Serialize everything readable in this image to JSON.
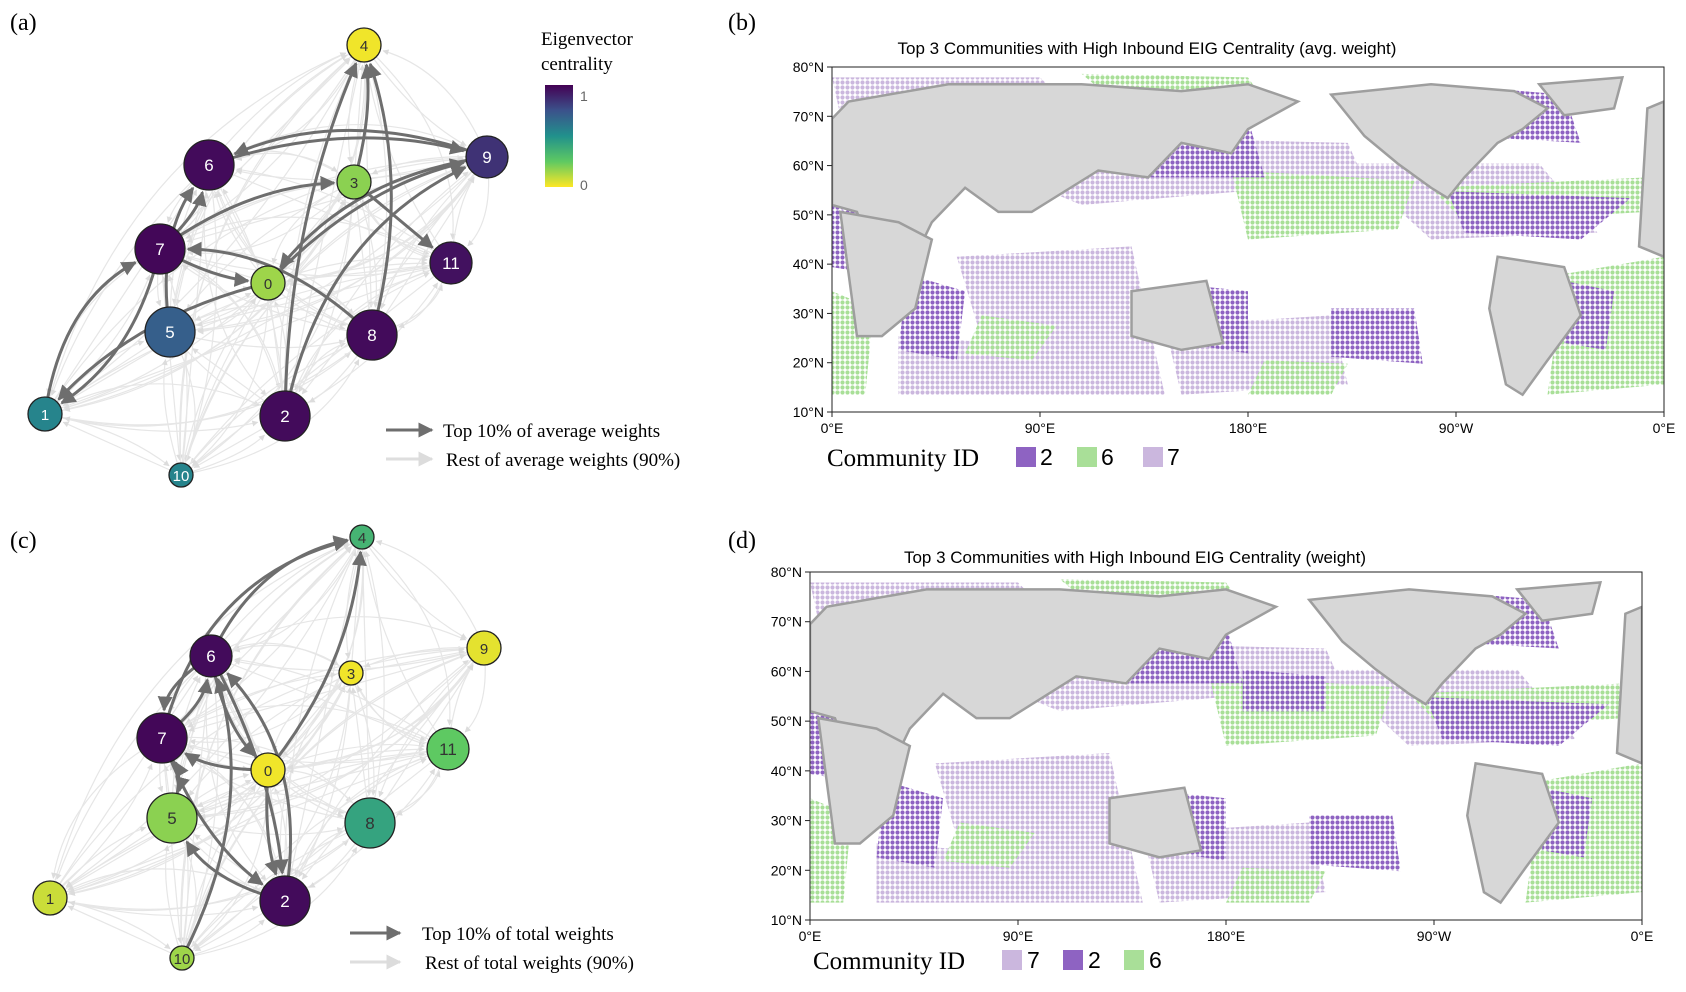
{
  "panels": {
    "a": {
      "label": "(a)",
      "colorbar": {
        "title_line1": "Eigenvector",
        "title_line2": "centrality",
        "max_label": "1",
        "min_label": "0"
      },
      "legend": {
        "top": "Top 10% of average weights",
        "rest": "Rest  of average weights (90%)"
      },
      "nodes": [
        {
          "id": "0",
          "label": "0",
          "centrality": 0.15,
          "size": "small"
        },
        {
          "id": "1",
          "label": "1",
          "centrality": 0.55,
          "size": "small"
        },
        {
          "id": "2",
          "label": "2",
          "centrality": 0.97,
          "size": "large"
        },
        {
          "id": "3",
          "label": "3",
          "centrality": 0.18,
          "size": "small"
        },
        {
          "id": "4",
          "label": "4",
          "centrality": 0.02,
          "size": "small"
        },
        {
          "id": "5",
          "label": "5",
          "centrality": 0.7,
          "size": "large"
        },
        {
          "id": "6",
          "label": "6",
          "centrality": 0.97,
          "size": "large"
        },
        {
          "id": "7",
          "label": "7",
          "centrality": 0.98,
          "size": "large"
        },
        {
          "id": "8",
          "label": "8",
          "centrality": 0.97,
          "size": "large"
        },
        {
          "id": "9",
          "label": "9",
          "centrality": 0.85,
          "size": "medium"
        },
        {
          "id": "10",
          "label": "10",
          "centrality": 0.55,
          "size": "tiny"
        },
        {
          "id": "11",
          "label": "11",
          "centrality": 0.95,
          "size": "medium"
        }
      ]
    },
    "b": {
      "label": "(b)",
      "title": "Top 3 Communities with High Inbound EIG Centrality (avg. weight)",
      "y_ticks": [
        "80°N",
        "70°N",
        "60°N",
        "50°N",
        "40°N",
        "30°N",
        "20°N",
        "10°N"
      ],
      "x_ticks": [
        "0°E",
        "90°E",
        "180°E",
        "90°W",
        "0°E"
      ],
      "legend_title": "Community ID",
      "legend": [
        {
          "label": "2",
          "color": "#8e63c2"
        },
        {
          "label": "6",
          "color": "#a9df98"
        },
        {
          "label": "7",
          "color": "#cbb7de"
        }
      ]
    },
    "c": {
      "label": "(c)",
      "legend": {
        "top": "Top 10% of total weights",
        "rest": "Rest  of total weights (90%)"
      },
      "nodes": [
        {
          "id": "0",
          "label": "0",
          "centrality": 0.02,
          "size": "small"
        },
        {
          "id": "1",
          "label": "1",
          "centrality": 0.08,
          "size": "small"
        },
        {
          "id": "2",
          "label": "2",
          "centrality": 0.97,
          "size": "large"
        },
        {
          "id": "3",
          "label": "3",
          "centrality": 0.02,
          "size": "tiny"
        },
        {
          "id": "4",
          "label": "4",
          "centrality": 0.35,
          "size": "tiny"
        },
        {
          "id": "5",
          "label": "5",
          "centrality": 0.18,
          "size": "large"
        },
        {
          "id": "6",
          "label": "6",
          "centrality": 0.97,
          "size": "medium"
        },
        {
          "id": "7",
          "label": "7",
          "centrality": 0.98,
          "size": "large"
        },
        {
          "id": "8",
          "label": "8",
          "centrality": 0.42,
          "size": "large"
        },
        {
          "id": "9",
          "label": "9",
          "centrality": 0.04,
          "size": "small"
        },
        {
          "id": "10",
          "label": "10",
          "centrality": 0.15,
          "size": "tiny"
        },
        {
          "id": "11",
          "label": "11",
          "centrality": 0.25,
          "size": "medium"
        }
      ]
    },
    "d": {
      "label": "(d)",
      "title": "Top 3 Communities with High Inbound EIG Centrality (weight)",
      "y_ticks": [
        "80°N",
        "70°N",
        "60°N",
        "50°N",
        "40°N",
        "30°N",
        "20°N",
        "10°N"
      ],
      "x_ticks": [
        "0°E",
        "90°E",
        "180°E",
        "90°W",
        "0°E"
      ],
      "legend_title": "Community ID",
      "legend": [
        {
          "label": "7",
          "color": "#cbb7de"
        },
        {
          "label": "2",
          "color": "#8e63c2"
        },
        {
          "label": "6",
          "color": "#a9df98"
        }
      ]
    }
  },
  "colors": {
    "purple": "#8e63c2",
    "green": "#a9df98",
    "lavender": "#cbb7de",
    "land": "#d7d7d7",
    "coast": "#9e9e9e",
    "edge_top": "#6e6e6e",
    "edge_rest": "#dedede"
  }
}
